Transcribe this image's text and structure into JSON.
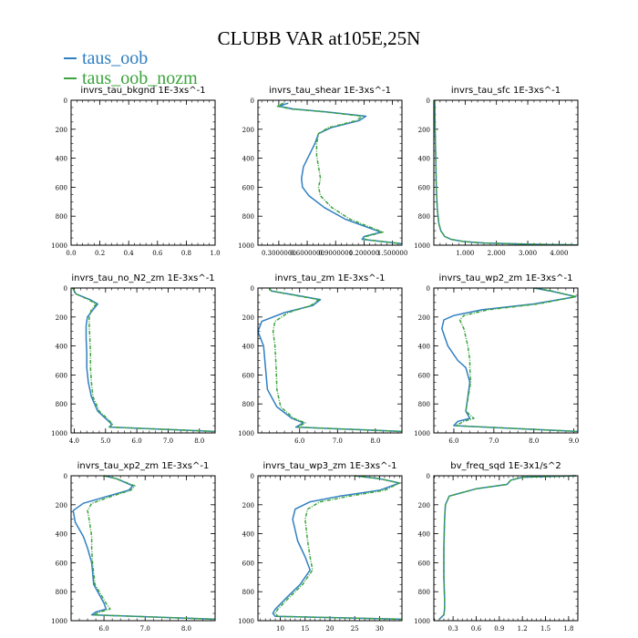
{
  "figure": {
    "title": "CLUBB VAR at105E,25N"
  },
  "legend": [
    {
      "label": "taus_oob",
      "color": "#2f7fc1"
    },
    {
      "label": "taus_oob_nozm",
      "color": "#3ca43c"
    }
  ],
  "chart_data": [
    {
      "type": "line",
      "title": "invrs_tau_bkgnd  1E-3xs^-1",
      "xlim": [
        0,
        1.0
      ],
      "ylim": [
        1000,
        0
      ],
      "xticks": [
        0.0,
        0.2,
        0.4,
        0.6,
        0.8,
        1.0
      ],
      "xticklabels": [
        "0.0",
        "0.2",
        "0.4",
        "0.6",
        "0.8",
        "1.0"
      ],
      "yticks": [
        0,
        200,
        400,
        600,
        800,
        1000
      ],
      "yticklabels": [
        "0",
        "200",
        "400",
        "600",
        "800",
        "1000"
      ],
      "series": [
        {
          "name": "taus_oob",
          "x": [],
          "y": []
        },
        {
          "name": "taus_oob_nozm",
          "x": [],
          "y": []
        }
      ]
    },
    {
      "type": "line",
      "title": "invrs_tau_shear  1E-3xs^-1",
      "xlim": [
        0.08,
        1.6
      ],
      "ylim": [
        1000,
        0
      ],
      "xticks": [
        0.3,
        0.6,
        0.9,
        1.2,
        1.5
      ],
      "xticklabels": [
        "0.3000000",
        "0.6000000",
        "0.9000000",
        "1.200000",
        "1.500000"
      ],
      "yticks": [
        0,
        200,
        400,
        600,
        800,
        1000
      ],
      "yticklabels": [
        "0",
        "200",
        "400",
        "600",
        "800",
        "1000"
      ],
      "series": [
        {
          "name": "taus_oob",
          "x": [
            0.4,
            0.3,
            0.45,
            0.8,
            1.22,
            1.15,
            0.85,
            0.72,
            0.68,
            0.62,
            0.56,
            0.54,
            0.55,
            0.62,
            0.78,
            1.0,
            1.25,
            1.38,
            1.2,
            1.18,
            1.6
          ],
          "y": [
            20,
            40,
            60,
            80,
            110,
            140,
            190,
            230,
            300,
            380,
            460,
            540,
            600,
            660,
            740,
            820,
            880,
            910,
            940,
            960,
            990
          ]
        },
        {
          "name": "taus_oob_nozm",
          "x": [
            0.35,
            0.28,
            0.42,
            0.78,
            1.18,
            1.12,
            0.82,
            0.72,
            0.7,
            0.7,
            0.72,
            0.74,
            0.72,
            0.74,
            0.86,
            1.05,
            1.28,
            1.4,
            1.22,
            1.2,
            1.6
          ],
          "y": [
            20,
            40,
            60,
            80,
            110,
            140,
            190,
            230,
            300,
            380,
            460,
            540,
            600,
            660,
            740,
            820,
            880,
            910,
            940,
            960,
            990
          ]
        }
      ]
    },
    {
      "type": "line",
      "title": "invrs_tau_sfc  1E-3xs^-1",
      "xlim": [
        0,
        4.6
      ],
      "ylim": [
        1000,
        0
      ],
      "xticks": [
        1,
        2,
        3,
        4
      ],
      "xticklabels": [
        "1.000",
        "2.000",
        "3.000",
        "4.000"
      ],
      "yticks": [
        0,
        200,
        400,
        600,
        800,
        1000
      ],
      "yticklabels": [
        "0",
        "200",
        "400",
        "600",
        "800",
        "1000"
      ],
      "series": [
        {
          "name": "taus_oob",
          "x": [
            0.03,
            0.04,
            0.06,
            0.08,
            0.11,
            0.16,
            0.22,
            0.35,
            0.55,
            0.95,
            1.6,
            3.0,
            4.6
          ],
          "y": [
            0,
            200,
            400,
            600,
            750,
            850,
            900,
            940,
            960,
            975,
            985,
            993,
            998
          ]
        },
        {
          "name": "taus_oob_nozm",
          "x": [
            0.03,
            0.04,
            0.06,
            0.08,
            0.11,
            0.16,
            0.22,
            0.35,
            0.55,
            0.95,
            1.6,
            3.0,
            4.6
          ],
          "y": [
            0,
            200,
            400,
            600,
            750,
            850,
            900,
            940,
            960,
            975,
            985,
            993,
            998
          ]
        }
      ]
    },
    {
      "type": "line",
      "title": "invrs_tau_no_N2_zm  1E-3xs^-1",
      "xlim": [
        3.9,
        8.5
      ],
      "ylim": [
        1000,
        0
      ],
      "xticks": [
        4,
        5,
        6,
        7,
        8
      ],
      "xticklabels": [
        "4.0",
        "5.0",
        "6.0",
        "7.0",
        "8.0"
      ],
      "yticks": [
        0,
        200,
        400,
        600,
        800,
        1000
      ],
      "yticklabels": [
        "0",
        "200",
        "400",
        "600",
        "800",
        "1000"
      ],
      "series": [
        {
          "name": "taus_oob",
          "x": [
            3.95,
            4.05,
            4.5,
            4.75,
            4.6,
            4.42,
            4.38,
            4.38,
            4.4,
            4.4,
            4.45,
            4.55,
            4.75,
            5.05,
            5.2,
            5.12,
            8.5
          ],
          "y": [
            0,
            40,
            80,
            110,
            150,
            200,
            260,
            350,
            450,
            550,
            650,
            750,
            850,
            910,
            940,
            960,
            990
          ]
        },
        {
          "name": "taus_oob_nozm",
          "x": [
            3.95,
            4.05,
            4.45,
            4.7,
            4.55,
            4.48,
            4.48,
            4.5,
            4.52,
            4.52,
            4.55,
            4.6,
            4.8,
            5.1,
            5.22,
            5.15,
            8.5
          ],
          "y": [
            0,
            40,
            80,
            110,
            150,
            200,
            260,
            350,
            450,
            550,
            650,
            750,
            850,
            910,
            940,
            960,
            990
          ]
        }
      ]
    },
    {
      "type": "line",
      "title": "invrs_tau_zm  1E-3xs^-1",
      "xlim": [
        4.9,
        8.7
      ],
      "ylim": [
        1000,
        0
      ],
      "xticks": [
        6,
        7,
        8
      ],
      "xticklabels": [
        "6.0",
        "7.0",
        "8.0"
      ],
      "yticks": [
        0,
        200,
        400,
        600,
        800,
        1000
      ],
      "yticklabels": [
        "0",
        "200",
        "400",
        "600",
        "800",
        "1000"
      ],
      "series": [
        {
          "name": "taus_oob",
          "x": [
            5.2,
            5.25,
            5.9,
            6.55,
            6.35,
            5.6,
            5.0,
            4.9,
            5.05,
            5.1,
            5.15,
            5.4,
            5.8,
            6.1,
            5.9,
            8.7
          ],
          "y": [
            0,
            20,
            50,
            80,
            120,
            170,
            230,
            300,
            400,
            550,
            700,
            820,
            900,
            930,
            960,
            990
          ]
        },
        {
          "name": "taus_oob_nozm",
          "x": [
            5.2,
            5.25,
            5.85,
            6.5,
            6.3,
            5.7,
            5.35,
            5.3,
            5.35,
            5.38,
            5.4,
            5.5,
            5.85,
            6.15,
            5.95,
            8.7
          ],
          "y": [
            0,
            20,
            50,
            80,
            120,
            170,
            230,
            300,
            400,
            550,
            700,
            820,
            900,
            930,
            960,
            990
          ]
        }
      ]
    },
    {
      "type": "line",
      "title": "invrs_tau_wp2_zm  1E-3xs^-1",
      "xlim": [
        5.5,
        9.1
      ],
      "ylim": [
        1000,
        0
      ],
      "xticks": [
        6,
        7,
        8,
        9
      ],
      "xticklabels": [
        "6.0",
        "7.0",
        "8.0",
        "9.0"
      ],
      "yticks": [
        0,
        200,
        400,
        600,
        800,
        1000
      ],
      "yticklabels": [
        "0",
        "200",
        "400",
        "600",
        "800",
        "1000"
      ],
      "series": [
        {
          "name": "taus_oob",
          "x": [
            8.0,
            8.4,
            9.05,
            8.0,
            6.7,
            6.0,
            5.75,
            5.7,
            5.85,
            6.1,
            6.3,
            6.4,
            6.3,
            6.4,
            6.1,
            6.0,
            9.1
          ],
          "y": [
            0,
            20,
            60,
            110,
            150,
            190,
            220,
            280,
            400,
            500,
            550,
            650,
            850,
            900,
            920,
            950,
            990
          ]
        },
        {
          "name": "taus_oob_nozm",
          "x": [
            8.05,
            8.45,
            9.05,
            8.1,
            6.85,
            6.25,
            6.15,
            6.25,
            6.35,
            6.4,
            6.4,
            6.42,
            6.3,
            6.5,
            6.25,
            6.05,
            9.1
          ],
          "y": [
            0,
            20,
            60,
            110,
            150,
            190,
            220,
            280,
            400,
            500,
            550,
            650,
            850,
            900,
            920,
            950,
            990
          ]
        }
      ]
    },
    {
      "type": "line",
      "title": "invrs_tau_xp2_zm  1E-3xs^-1",
      "xlim": [
        5.2,
        8.7
      ],
      "ylim": [
        1000,
        0
      ],
      "xticks": [
        6,
        7,
        8
      ],
      "xticklabels": [
        "6.0",
        "7.0",
        "8.0"
      ],
      "yticks": [
        0,
        200,
        400,
        600,
        800,
        1000
      ],
      "yticklabels": [
        "0",
        "200",
        "400",
        "600",
        "800",
        "1000"
      ],
      "series": [
        {
          "name": "taus_oob",
          "x": [
            6.0,
            6.3,
            6.7,
            6.6,
            6.1,
            5.5,
            5.25,
            5.3,
            5.5,
            5.6,
            5.7,
            5.75,
            6.0,
            6.05,
            5.8,
            5.7,
            8.7
          ],
          "y": [
            0,
            20,
            70,
            100,
            140,
            190,
            240,
            320,
            420,
            500,
            600,
            750,
            880,
            920,
            940,
            960,
            990
          ]
        },
        {
          "name": "taus_oob_nozm",
          "x": [
            6.0,
            6.3,
            6.75,
            6.65,
            6.2,
            5.7,
            5.6,
            5.65,
            5.7,
            5.7,
            5.72,
            5.78,
            6.05,
            6.15,
            5.9,
            5.75,
            8.7
          ],
          "y": [
            0,
            20,
            70,
            100,
            140,
            190,
            240,
            320,
            420,
            500,
            600,
            750,
            880,
            920,
            940,
            960,
            990
          ]
        }
      ]
    },
    {
      "type": "line",
      "title": "invrs_tau_wp3_zm  1E-3xs^-1",
      "xlim": [
        5.5,
        34.5
      ],
      "ylim": [
        1000,
        0
      ],
      "xticks": [
        10,
        15,
        20,
        25,
        30
      ],
      "xticklabels": [
        "10",
        "15",
        "20",
        "25",
        "30"
      ],
      "yticks": [
        0,
        200,
        400,
        600,
        800,
        1000
      ],
      "yticklabels": [
        "0",
        "200",
        "400",
        "600",
        "800",
        "1000"
      ],
      "series": [
        {
          "name": "taus_oob",
          "x": [
            25.0,
            30.0,
            34.0,
            30.0,
            22.0,
            16.0,
            13.0,
            12.5,
            13.5,
            15.0,
            16.0,
            14.0,
            11.0,
            9.0,
            8.5,
            9.0,
            34.5
          ],
          "y": [
            0,
            20,
            50,
            100,
            140,
            180,
            230,
            300,
            450,
            560,
            650,
            750,
            850,
            920,
            950,
            970,
            990
          ]
        },
        {
          "name": "taus_oob_nozm",
          "x": [
            25.0,
            30.0,
            34.0,
            31.0,
            24.0,
            18.0,
            15.5,
            15.0,
            15.5,
            16.0,
            16.5,
            14.5,
            11.5,
            9.5,
            9.0,
            9.5,
            34.5
          ],
          "y": [
            0,
            20,
            50,
            100,
            140,
            180,
            230,
            300,
            450,
            560,
            650,
            750,
            850,
            920,
            950,
            970,
            990
          ]
        }
      ]
    },
    {
      "type": "line",
      "title": "bv_freq_sqd  1E-3x1/s^2",
      "xlim": [
        0.05,
        1.92
      ],
      "ylim": [
        1000,
        0
      ],
      "xticks": [
        0.3,
        0.6,
        0.9,
        1.2,
        1.5,
        1.8
      ],
      "xticklabels": [
        "0.3",
        "0.6",
        "0.9",
        "1.2",
        "1.5",
        "1.8"
      ],
      "yticks": [
        0,
        200,
        400,
        600,
        800,
        1000
      ],
      "yticklabels": [
        "0",
        "200",
        "400",
        "600",
        "800",
        "1000"
      ],
      "series": [
        {
          "name": "taus_oob",
          "x": [
            1.9,
            1.2,
            1.05,
            1.0,
            0.6,
            0.25,
            0.2,
            0.19,
            0.18,
            0.18,
            0.19,
            0.19,
            0.18,
            0.12
          ],
          "y": [
            0,
            10,
            30,
            60,
            90,
            140,
            200,
            300,
            500,
            700,
            850,
            920,
            960,
            990
          ]
        },
        {
          "name": "taus_oob_nozm",
          "x": [
            1.9,
            1.2,
            1.05,
            1.0,
            0.6,
            0.25,
            0.2,
            0.19,
            0.18,
            0.18,
            0.19,
            0.19,
            0.18,
            0.12
          ],
          "y": [
            0,
            10,
            30,
            60,
            90,
            140,
            200,
            300,
            500,
            700,
            850,
            920,
            960,
            990
          ]
        }
      ]
    }
  ]
}
